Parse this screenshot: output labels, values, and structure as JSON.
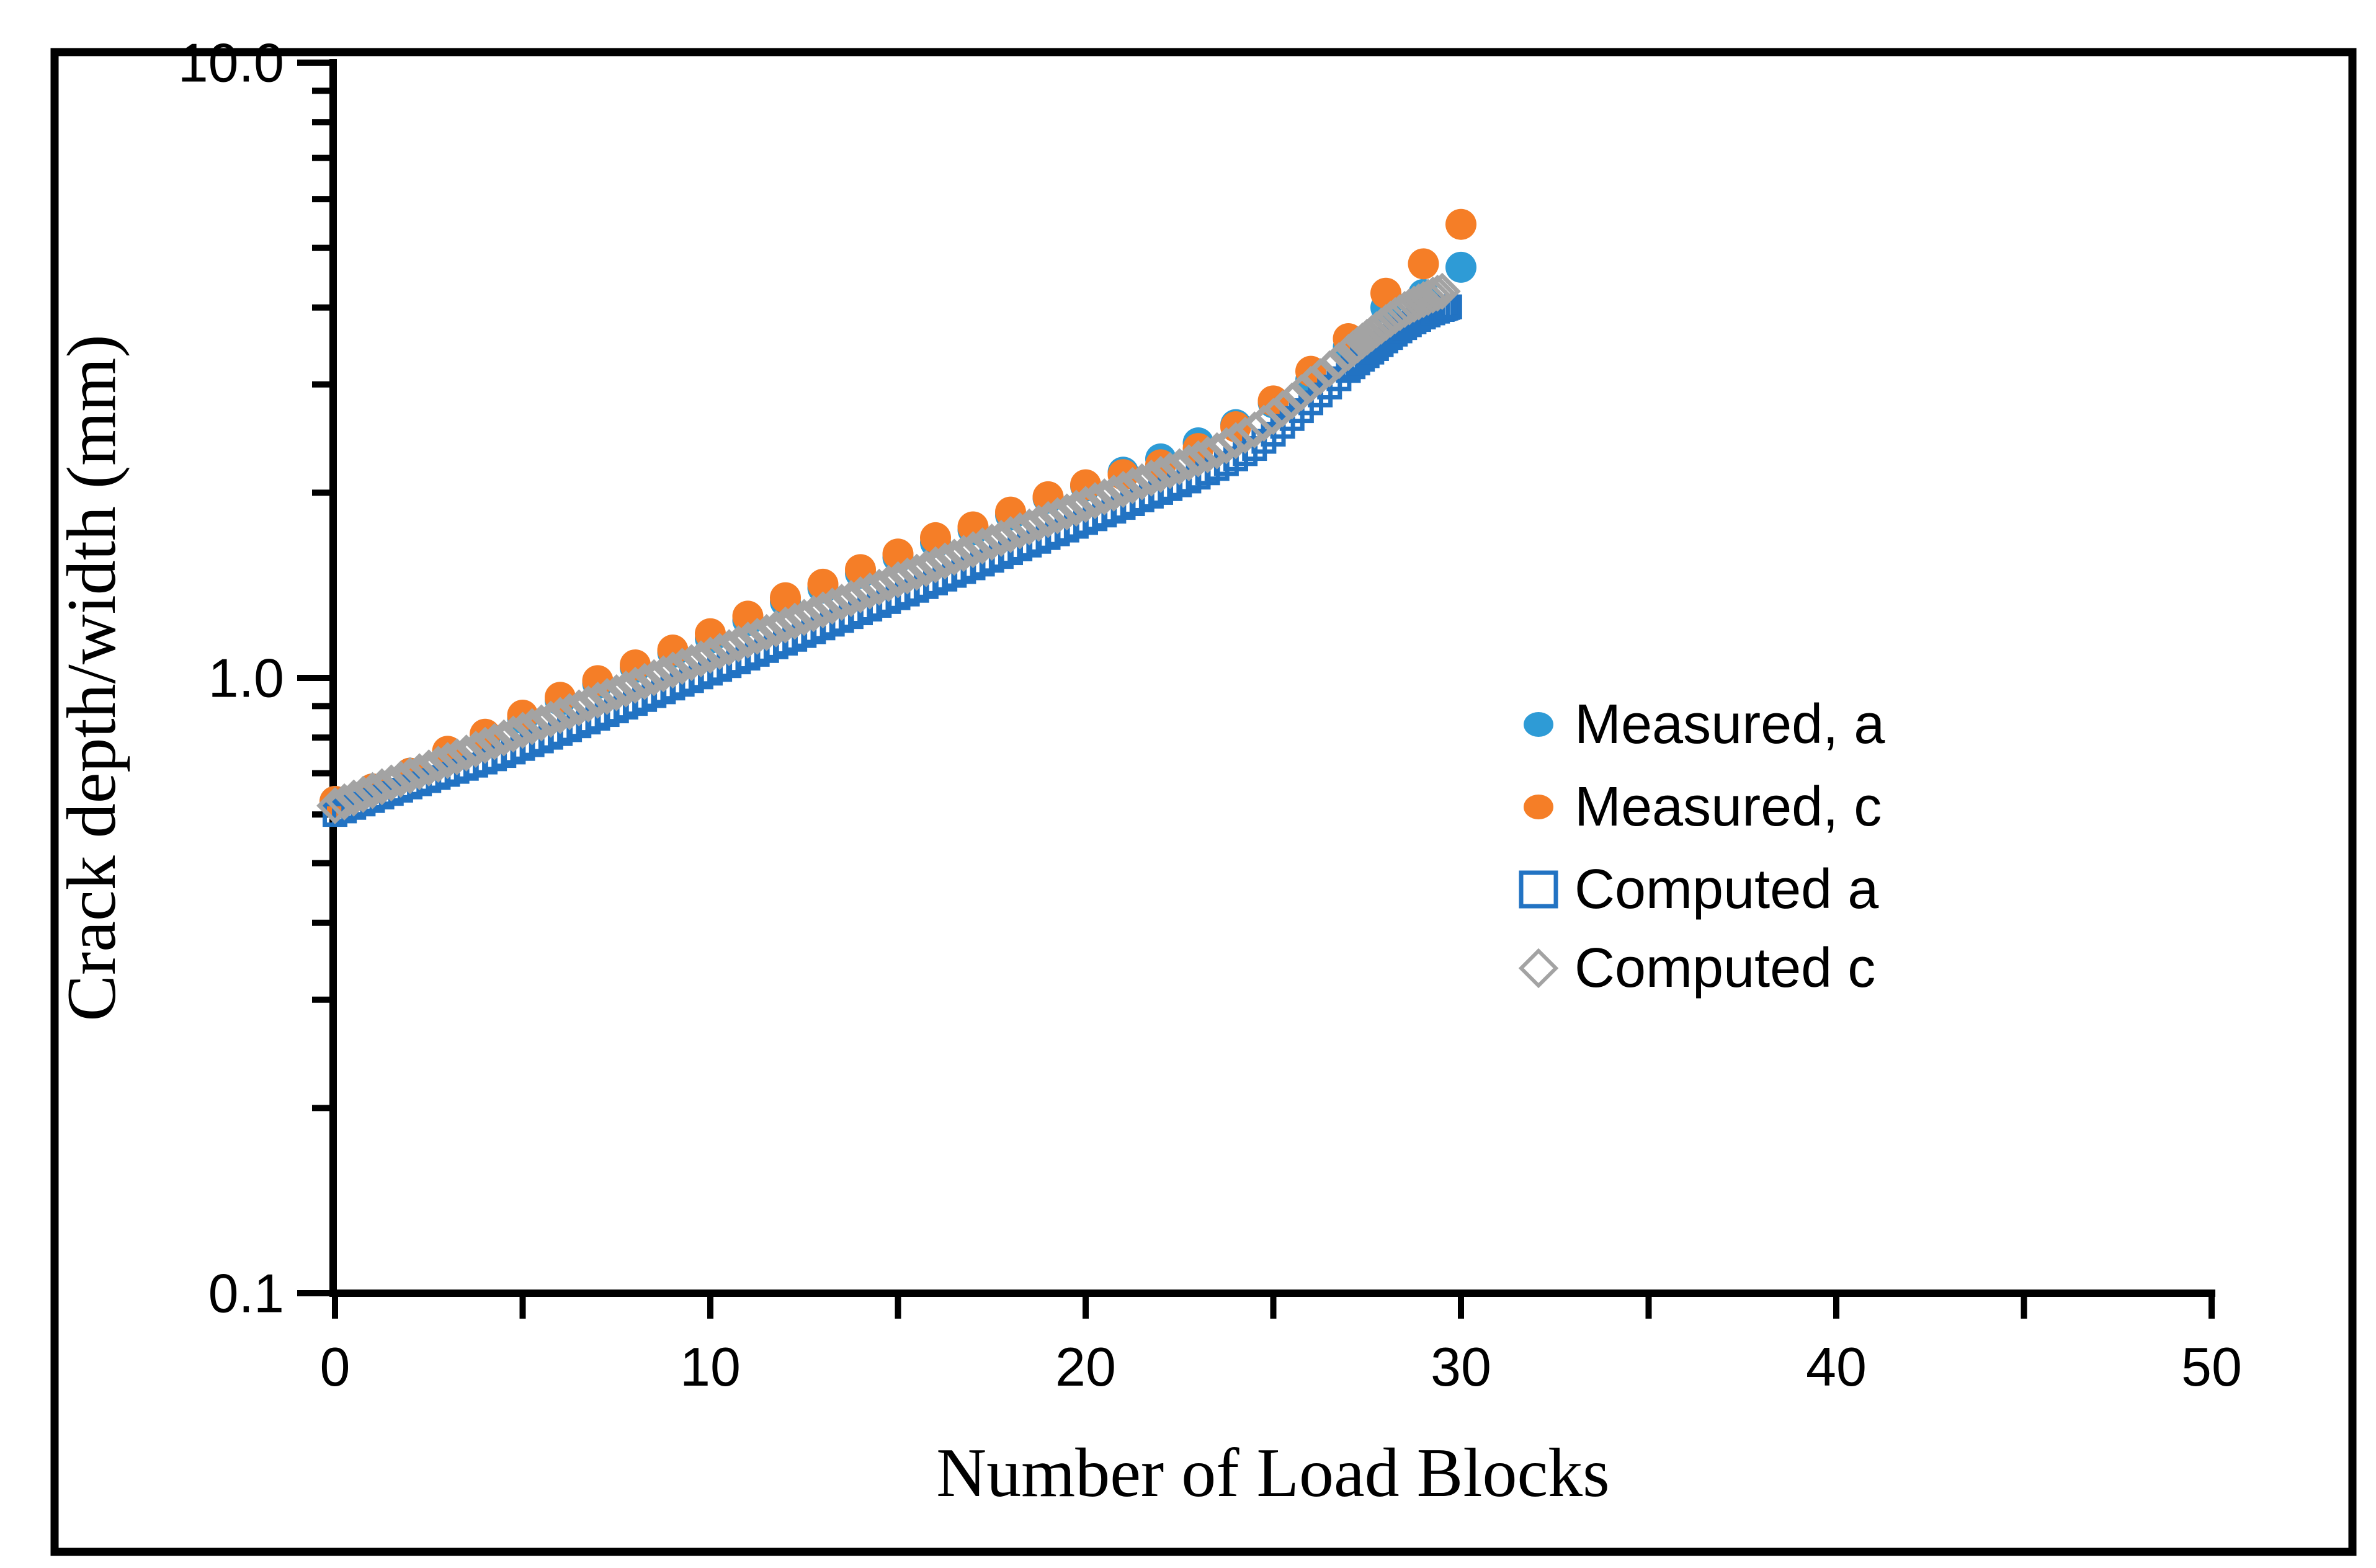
{
  "figure": {
    "background_color": "#FFFFFF",
    "border_color": "#000000"
  },
  "chart_data": {
    "type": "scatter",
    "title": "",
    "xlabel": "Number of Load Blocks",
    "ylabel": "Crack depth/width (mm)",
    "grid": "off",
    "x_axis": {
      "scale": "linear",
      "min": 0,
      "max": 50,
      "major_ticks": [
        0,
        10,
        20,
        30,
        40,
        50
      ],
      "major_tick_labels": [
        "0",
        "10",
        "20",
        "30",
        "40",
        "50"
      ],
      "minor_ticks": [
        5,
        15,
        25,
        35,
        45
      ]
    },
    "y_axis": {
      "scale": "log10",
      "min": 0.1,
      "max": 10.0,
      "major_ticks": [
        0.1,
        1.0,
        10.0
      ],
      "major_tick_labels": [
        "0.1",
        "1.0",
        "10.0"
      ],
      "minor_ticks": [
        0.2,
        0.3,
        0.4,
        0.5,
        0.6,
        0.7,
        0.8,
        0.9,
        2,
        3,
        4,
        5,
        6,
        7,
        8,
        9
      ]
    },
    "legend": {
      "position": "inside-right-middle",
      "items": [
        {
          "label": "Measured, a",
          "marker": "filled-circle",
          "color": "#2E9BD6"
        },
        {
          "label": "Measured, c",
          "marker": "filled-circle",
          "color": "#F57E27"
        },
        {
          "label": "Computed a",
          "marker": "open-square",
          "color": "#2273C3"
        },
        {
          "label": "Computed c",
          "marker": "open-diamond",
          "color": "#A3A3A3"
        }
      ]
    },
    "series": [
      {
        "name": "Measured, a",
        "marker": "filled-circle",
        "color": "#2E9BD6",
        "points": [
          [
            0,
            0.63
          ],
          [
            1,
            0.66
          ],
          [
            2,
            0.7
          ],
          [
            3,
            0.75
          ],
          [
            4,
            0.8
          ],
          [
            5,
            0.86
          ],
          [
            6,
            0.92
          ],
          [
            7,
            0.98
          ],
          [
            8,
            1.04
          ],
          [
            9,
            1.1
          ],
          [
            10,
            1.16
          ],
          [
            11,
            1.24
          ],
          [
            12,
            1.33
          ],
          [
            13,
            1.4
          ],
          [
            14,
            1.48
          ],
          [
            15,
            1.57
          ],
          [
            16,
            1.66
          ],
          [
            17,
            1.74
          ],
          [
            18,
            1.84
          ],
          [
            19,
            1.96
          ],
          [
            20,
            2.05
          ],
          [
            21,
            2.16
          ],
          [
            22,
            2.27
          ],
          [
            23,
            2.41
          ],
          [
            24,
            2.58
          ],
          [
            25,
            2.8
          ],
          [
            26,
            3.05
          ],
          [
            27,
            3.45
          ],
          [
            28,
            4.0
          ],
          [
            29,
            4.2
          ],
          [
            30,
            4.65
          ]
        ]
      },
      {
        "name": "Measured, c",
        "marker": "filled-circle",
        "color": "#F57E27",
        "points": [
          [
            0,
            0.63
          ],
          [
            1,
            0.66
          ],
          [
            2,
            0.7
          ],
          [
            3,
            0.76
          ],
          [
            4,
            0.81
          ],
          [
            5,
            0.87
          ],
          [
            6,
            0.93
          ],
          [
            7,
            0.99
          ],
          [
            8,
            1.05
          ],
          [
            9,
            1.11
          ],
          [
            10,
            1.18
          ],
          [
            11,
            1.26
          ],
          [
            12,
            1.35
          ],
          [
            13,
            1.42
          ],
          [
            14,
            1.5
          ],
          [
            15,
            1.59
          ],
          [
            16,
            1.69
          ],
          [
            17,
            1.76
          ],
          [
            18,
            1.86
          ],
          [
            19,
            1.97
          ],
          [
            20,
            2.06
          ],
          [
            21,
            2.14
          ],
          [
            22,
            2.22
          ],
          [
            23,
            2.36
          ],
          [
            24,
            2.56
          ],
          [
            25,
            2.82
          ],
          [
            26,
            3.15
          ],
          [
            27,
            3.56
          ],
          [
            28,
            4.22
          ],
          [
            29,
            4.71
          ],
          [
            30,
            5.46
          ]
        ]
      },
      {
        "name": "Computed a",
        "marker": "open-square",
        "color": "#2273C3",
        "n_start": 0,
        "n_step": 0.5,
        "values": [
          0.6,
          0.616,
          0.632,
          0.649,
          0.665,
          0.681,
          0.697,
          0.713,
          0.73,
          0.748,
          0.768,
          0.79,
          0.812,
          0.836,
          0.86,
          0.884,
          0.909,
          0.936,
          0.963,
          0.99,
          1.018,
          1.047,
          1.077,
          1.108,
          1.139,
          1.172,
          1.206,
          1.24,
          1.276,
          1.312,
          1.35,
          1.388,
          1.427,
          1.468,
          1.51,
          1.553,
          1.598,
          1.644,
          1.691,
          1.739,
          1.789,
          1.84,
          1.893,
          1.947,
          2.002,
          2.06,
          2.12,
          2.19,
          2.27,
          2.36,
          2.49,
          2.64,
          2.8,
          2.97,
          3.16
        ],
        "tail": [
          [
            27.25,
            3.25
          ],
          [
            27.5,
            3.34
          ],
          [
            27.75,
            3.43
          ],
          [
            28,
            3.53
          ],
          [
            28.25,
            3.62
          ],
          [
            28.5,
            3.71
          ],
          [
            28.75,
            3.79
          ],
          [
            29,
            3.86
          ],
          [
            29.25,
            3.92
          ],
          [
            29.5,
            3.97
          ],
          [
            29.6,
            3.99
          ],
          [
            29.7,
            4.01
          ]
        ]
      },
      {
        "name": "Computed c",
        "marker": "open-diamond",
        "color": "#A3A3A3",
        "n_start": 0,
        "n_step": 0.5,
        "values": [
          0.62,
          0.638,
          0.656,
          0.675,
          0.694,
          0.714,
          0.734,
          0.755,
          0.777,
          0.799,
          0.822,
          0.845,
          0.869,
          0.894,
          0.92,
          0.946,
          0.973,
          1.001,
          1.03,
          1.059,
          1.089,
          1.12,
          1.152,
          1.185,
          1.219,
          1.254,
          1.29,
          1.327,
          1.365,
          1.404,
          1.444,
          1.485,
          1.527,
          1.571,
          1.616,
          1.662,
          1.71,
          1.759,
          1.809,
          1.861,
          1.914,
          1.969,
          2.025,
          2.083,
          2.142,
          2.204,
          2.27,
          2.34,
          2.43,
          2.53,
          2.66,
          2.82,
          3.0,
          3.18,
          3.38
        ],
        "tail": [
          [
            27.25,
            3.48
          ],
          [
            27.5,
            3.58
          ],
          [
            27.75,
            3.68
          ],
          [
            28,
            3.78
          ],
          [
            28.25,
            3.88
          ],
          [
            28.5,
            3.97
          ],
          [
            28.75,
            4.05
          ],
          [
            29,
            4.12
          ],
          [
            29.25,
            4.19
          ],
          [
            29.5,
            4.25
          ]
        ]
      }
    ]
  }
}
